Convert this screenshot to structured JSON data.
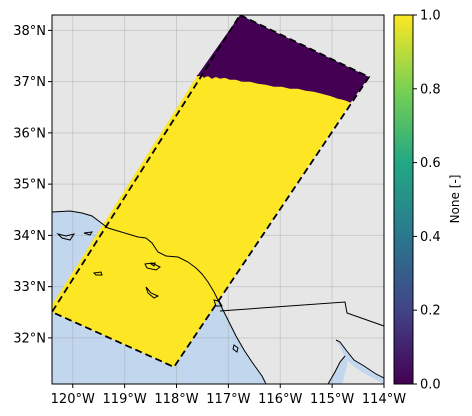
{
  "chart_data": {
    "type": "heatmap",
    "title": "",
    "projection": "PlateCarree",
    "extent": {
      "lon": [
        -120.4,
        -114.0
      ],
      "lat": [
        31.1,
        38.3
      ]
    },
    "x_ticks": [
      "120°W",
      "119°W",
      "118°W",
      "117°W",
      "116°W",
      "115°W",
      "114°W"
    ],
    "x_tick_values": [
      -120,
      -119,
      -118,
      -117,
      -116,
      -115,
      -114
    ],
    "y_ticks": [
      "32°N",
      "33°N",
      "34°N",
      "35°N",
      "36°N",
      "37°N",
      "38°N"
    ],
    "y_tick_values": [
      32,
      33,
      34,
      35,
      36,
      37,
      38
    ],
    "grid": true,
    "background_colors": {
      "land": "#e6e6e6",
      "ocean": "#c2d6ee",
      "coastline": "#000000"
    },
    "swath": {
      "outline_style": "dashed",
      "outline_corners_lonlat": [
        [
          -116.97,
          38.25
        ],
        [
          -114.0,
          37.05
        ],
        [
          -118.05,
          31.4
        ],
        [
          -120.4,
          32.6
        ]
      ],
      "regions": [
        {
          "value": 1.0,
          "description": "lower portion of swath",
          "lat_max_west": 37.0,
          "lat_max_east": 36.55
        },
        {
          "value": 0.0,
          "description": "upper portion of swath",
          "lat_min_west": 37.0,
          "lat_min_east": 36.55
        }
      ]
    },
    "colorbar": {
      "label": "None [-]",
      "colormap": "viridis",
      "range": [
        0.0,
        1.0
      ],
      "ticks": [
        "0.0",
        "0.2",
        "0.4",
        "0.6",
        "0.8",
        "1.0"
      ],
      "tick_values": [
        0.0,
        0.2,
        0.4,
        0.6,
        0.8,
        1.0
      ],
      "colors": [
        "#440154",
        "#414487",
        "#2a788e",
        "#22a884",
        "#7ad151",
        "#fde725"
      ]
    }
  }
}
